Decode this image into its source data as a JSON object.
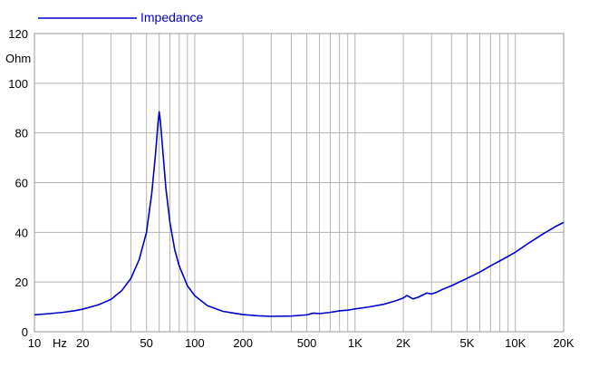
{
  "chart_data": {
    "type": "line",
    "title": "",
    "xlabel": "",
    "ylabel": "",
    "x_scale": "log",
    "xlim": [
      10,
      20000
    ],
    "ylim": [
      0,
      120
    ],
    "grid": true,
    "legend_position": "top-left",
    "y_unit_label": "Ohm",
    "x_unit_label": "Hz",
    "x_ticks": [
      {
        "value": 10,
        "label": "10"
      },
      {
        "value": 20,
        "label": "20"
      },
      {
        "value": 50,
        "label": "50"
      },
      {
        "value": 100,
        "label": "100"
      },
      {
        "value": 200,
        "label": "200"
      },
      {
        "value": 500,
        "label": "500"
      },
      {
        "value": 1000,
        "label": "1K"
      },
      {
        "value": 2000,
        "label": "2K"
      },
      {
        "value": 5000,
        "label": "5K"
      },
      {
        "value": 10000,
        "label": "10K"
      },
      {
        "value": 20000,
        "label": "20K"
      }
    ],
    "y_ticks": [
      {
        "value": 0,
        "label": "0"
      },
      {
        "value": 20,
        "label": "20"
      },
      {
        "value": 40,
        "label": "40"
      },
      {
        "value": 60,
        "label": "60"
      },
      {
        "value": 80,
        "label": "80"
      },
      {
        "value": 100,
        "label": "100"
      },
      {
        "value": 120,
        "label": "120"
      }
    ],
    "series": [
      {
        "name": "Impedance",
        "color": "#0000cc",
        "x": [
          10,
          12,
          15,
          18,
          20,
          25,
          30,
          35,
          40,
          45,
          50,
          54,
          57,
          59,
          60,
          61,
          63,
          66,
          70,
          75,
          80,
          90,
          100,
          120,
          150,
          200,
          250,
          300,
          400,
          500,
          550,
          600,
          700,
          800,
          900,
          1000,
          1200,
          1500,
          1800,
          2000,
          2100,
          2200,
          2300,
          2500,
          2800,
          3000,
          3200,
          3500,
          4000,
          5000,
          6000,
          7000,
          8000,
          10000,
          12000,
          15000,
          18000,
          20000
        ],
        "y": [
          6.8,
          7.2,
          7.8,
          8.5,
          9.1,
          10.8,
          13.0,
          16.5,
          21.5,
          29.0,
          40.0,
          56.0,
          72.0,
          84.0,
          88.5,
          85.0,
          74.0,
          58.0,
          44.0,
          33.0,
          26.5,
          18.5,
          14.5,
          10.5,
          8.2,
          6.9,
          6.4,
          6.2,
          6.3,
          6.8,
          7.5,
          7.3,
          7.8,
          8.4,
          8.7,
          9.2,
          9.9,
          11.0,
          12.5,
          13.6,
          14.6,
          13.9,
          13.2,
          14.0,
          15.6,
          15.2,
          15.8,
          17.0,
          18.5,
          21.5,
          24.0,
          26.5,
          28.5,
          32.0,
          35.5,
          39.5,
          42.5,
          44.0
        ]
      }
    ]
  }
}
